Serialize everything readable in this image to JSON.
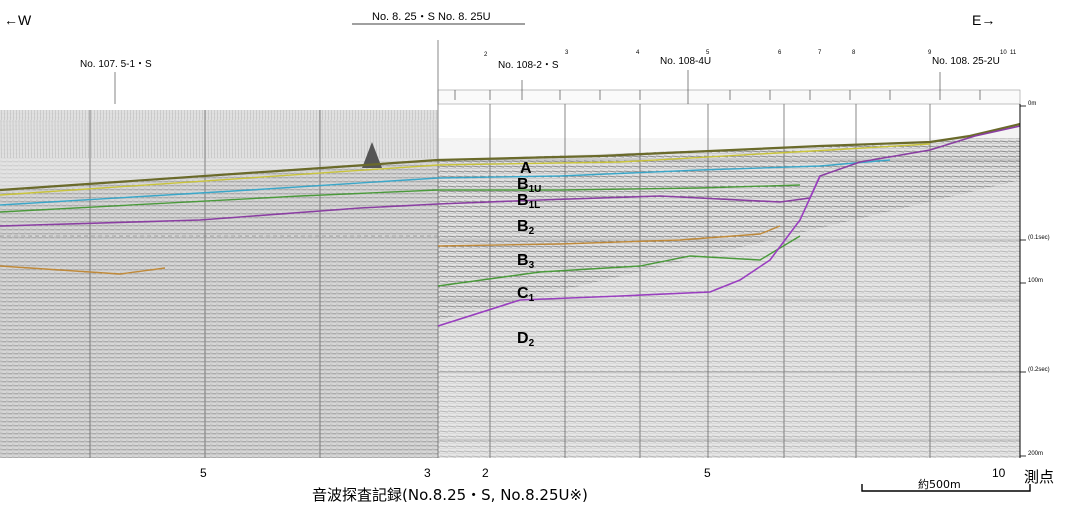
{
  "direction_west": "←W",
  "direction_east": "E→",
  "top_line_label": "No. 8. 25・S  No. 8. 25U",
  "left_line_label": "No. 107. 5-1・S",
  "right_line_labels": [
    "No. 108-2・S",
    "No. 108-4U",
    "No. 108. 25-2U"
  ],
  "top_ruler_numbers": [
    "2",
    "3",
    "4",
    "5",
    "6",
    "7",
    "8",
    "9",
    "10",
    "11"
  ],
  "layers": [
    {
      "main": "A",
      "sub": ""
    },
    {
      "main": "B",
      "sub": "1U"
    },
    {
      "main": "B",
      "sub": "1L"
    },
    {
      "main": "B",
      "sub": "2"
    },
    {
      "main": "B",
      "sub": "3"
    },
    {
      "main": "C",
      "sub": "1"
    },
    {
      "main": "D",
      "sub": "2"
    }
  ],
  "bottom_ticks": [
    "5",
    "3",
    "2",
    "5",
    "10"
  ],
  "measurement_point_label": "測点",
  "scale_label": "約500m",
  "caption": "音波探査記録(No.8.25・S, No.8.25U※)",
  "depth_scale": [
    "0m",
    "(0.1sec)",
    "100m",
    "(0.2sec)",
    "200m"
  ],
  "colors": {
    "horizon_A": "#c9c43a",
    "horizon_B1U": "#3aa7c9",
    "horizon_B1L": "#8b3fa3",
    "horizon_B2": "#c08a3a",
    "horizon_B3": "#4a9a3a",
    "horizon_C1": "#9a3fc0",
    "seabed": "#6a6a2a"
  }
}
